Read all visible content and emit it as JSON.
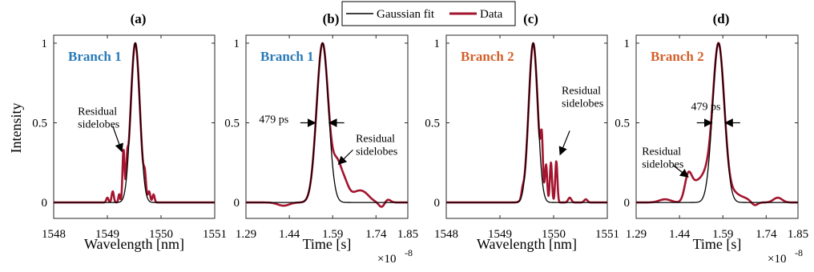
{
  "figure": {
    "ylabel": "Intensity",
    "legend": {
      "placement": "top-center",
      "entries": [
        "Gaussian fit",
        "Data"
      ]
    },
    "colors": {
      "fit": "#000000",
      "data": "#a3142e",
      "branch1": "#2a7ab8",
      "branch2": "#d4602a"
    }
  },
  "chart_data": [
    {
      "type": "line",
      "title": "(a)",
      "branch_label": "Branch 1",
      "branch_color": "#2a7ab8",
      "xlabel": "Wavelength [nm]",
      "xlim": [
        1548,
        1551
      ],
      "ylim": [
        -0.1,
        1.05
      ],
      "xticks": [
        1548,
        1549,
        1550,
        1551
      ],
      "xtick_labels": [
        "1548",
        "1549",
        "1550",
        "1551"
      ],
      "yticks": [
        0,
        0.5,
        1
      ],
      "ytick_labels": [
        "0",
        "0.5",
        "1"
      ],
      "exponent": "",
      "fit": {
        "center": 1549.52,
        "sigma": 0.085
      },
      "data_features": [
        [
          1549.22,
          0.05,
          0.015
        ],
        [
          1549.3,
          0.3,
          0.018
        ],
        [
          1549.37,
          0.12,
          0.015
        ],
        [
          1549.7,
          0.1,
          0.02
        ],
        [
          1549.78,
          0.06,
          0.02
        ],
        [
          1549.86,
          0.05,
          0.02
        ],
        [
          1549.1,
          0.07,
          0.02
        ],
        [
          1549.0,
          0.03,
          0.02
        ]
      ],
      "series": [
        {
          "name": "Gaussian fit"
        },
        {
          "name": "Data"
        }
      ],
      "annotations": [
        {
          "text_lines": [
            "Residual",
            "sidelobes"
          ],
          "text_x": 1548.45,
          "text_y": 0.55,
          "arrow_from": [
            1549.1,
            0.48
          ],
          "arrow_to": [
            1549.27,
            0.32
          ]
        }
      ]
    },
    {
      "type": "line",
      "title": "(b)",
      "branch_label": "Branch 1",
      "branch_color": "#2a7ab8",
      "xlabel": "Time [s]",
      "xlim": [
        1.29,
        1.85
      ],
      "ylim": [
        -0.1,
        1.05
      ],
      "xticks": [
        1.29,
        1.44,
        1.59,
        1.74,
        1.85
      ],
      "xtick_labels": [
        "1.29",
        "1.44",
        "1.59",
        "1.74",
        "1.85"
      ],
      "yticks": [
        0,
        0.5,
        1
      ],
      "ytick_labels": [
        "0",
        "0.5",
        "1"
      ],
      "exponent": "×10",
      "exponent_power": "-8",
      "fit": {
        "center": 1.555,
        "sigma": 0.0204
      },
      "data_features": [
        [
          1.605,
          0.2,
          0.014
        ],
        [
          1.63,
          0.12,
          0.015
        ],
        [
          1.67,
          0.05,
          0.02
        ],
        [
          1.7,
          0.05,
          0.02
        ],
        [
          1.76,
          -0.03,
          0.01
        ],
        [
          1.78,
          0.02,
          0.01
        ],
        [
          1.42,
          -0.02,
          0.02
        ]
      ],
      "series": [
        {
          "name": "Gaussian fit"
        },
        {
          "name": "Data"
        }
      ],
      "annotations": [
        {
          "text_lines": [
            "479 ps"
          ],
          "text_x": 1.335,
          "text_y": 0.5,
          "arrow_from": [
            1.478,
            0.5
          ],
          "arrow_to": [
            1.53,
            0.5
          ]
        },
        {
          "text_lines": [],
          "text_x": 0,
          "text_y": 0,
          "arrow_from": [
            1.63,
            0.5
          ],
          "arrow_to": [
            1.578,
            0.5
          ]
        },
        {
          "text_lines": [
            "Residual",
            "sidelobes"
          ],
          "text_x": 1.67,
          "text_y": 0.38,
          "arrow_from": [
            1.66,
            0.33
          ],
          "arrow_to": [
            1.61,
            0.24
          ]
        }
      ]
    },
    {
      "type": "line",
      "title": "(c)",
      "branch_label": "Branch 2",
      "branch_color": "#d4602a",
      "xlabel": "Wavelength [nm]",
      "xlim": [
        1548,
        1551
      ],
      "ylim": [
        -0.1,
        1.05
      ],
      "xticks": [
        1548,
        1549,
        1550,
        1551
      ],
      "xtick_labels": [
        "1548",
        "1549",
        "1550",
        "1551"
      ],
      "yticks": [
        0,
        0.5,
        1
      ],
      "ytick_labels": [
        "0",
        "0.5",
        "1"
      ],
      "exponent": "",
      "fit": {
        "center": 1549.62,
        "sigma": 0.085
      },
      "data_features": [
        [
          1549.78,
          0.28,
          0.02
        ],
        [
          1549.86,
          0.22,
          0.02
        ],
        [
          1549.95,
          0.25,
          0.02
        ],
        [
          1550.05,
          0.26,
          0.02
        ],
        [
          1549.42,
          0.04,
          0.02
        ],
        [
          1550.3,
          0.03,
          0.03
        ],
        [
          1550.6,
          0.02,
          0.03
        ]
      ],
      "series": [
        {
          "name": "Gaussian fit"
        },
        {
          "name": "Data"
        }
      ],
      "annotations": [
        {
          "text_lines": [
            "Residual",
            "sidelobes"
          ],
          "text_x": 1550.15,
          "text_y": 0.68,
          "arrow_from": [
            1550.3,
            0.45
          ],
          "arrow_to": [
            1550.12,
            0.3
          ]
        }
      ]
    },
    {
      "type": "line",
      "title": "(d)",
      "branch_label": "Branch 2",
      "branch_color": "#d4602a",
      "xlabel": "Time [s]",
      "xlim": [
        1.29,
        1.85
      ],
      "ylim": [
        -0.1,
        1.05
      ],
      "xticks": [
        1.29,
        1.44,
        1.59,
        1.74,
        1.85
      ],
      "xtick_labels": [
        "1.29",
        "1.44",
        "1.59",
        "1.74",
        "1.85"
      ],
      "yticks": [
        0,
        0.5,
        1
      ],
      "ytick_labels": [
        "0",
        "0.5",
        "1"
      ],
      "exponent": "×10",
      "exponent_power": "-8",
      "fit": {
        "center": 1.575,
        "sigma": 0.0204
      },
      "data_features": [
        [
          1.47,
          0.15,
          0.012
        ],
        [
          1.5,
          0.12,
          0.02
        ],
        [
          1.53,
          0.1,
          0.015
        ],
        [
          1.63,
          0.04,
          0.015
        ],
        [
          1.66,
          0.03,
          0.02
        ],
        [
          1.7,
          -0.02,
          0.01
        ],
        [
          1.78,
          0.03,
          0.015
        ],
        [
          1.39,
          0.02,
          0.02
        ]
      ],
      "series": [
        {
          "name": "Gaussian fit"
        },
        {
          "name": "Data"
        }
      ],
      "annotations": [
        {
          "text_lines": [
            "479 ps"
          ],
          "text_x": 1.48,
          "text_y": 0.58,
          "arrow_from": [
            1.5,
            0.5
          ],
          "arrow_to": [
            1.552,
            0.5
          ]
        },
        {
          "text_lines": [],
          "text_x": 0,
          "text_y": 0,
          "arrow_from": [
            1.65,
            0.5
          ],
          "arrow_to": [
            1.598,
            0.5
          ]
        },
        {
          "text_lines": [
            "Residual",
            "sidelobes"
          ],
          "text_x": 1.31,
          "text_y": 0.3,
          "arrow_from": [
            1.42,
            0.23
          ],
          "arrow_to": [
            1.47,
            0.16
          ]
        }
      ]
    }
  ]
}
